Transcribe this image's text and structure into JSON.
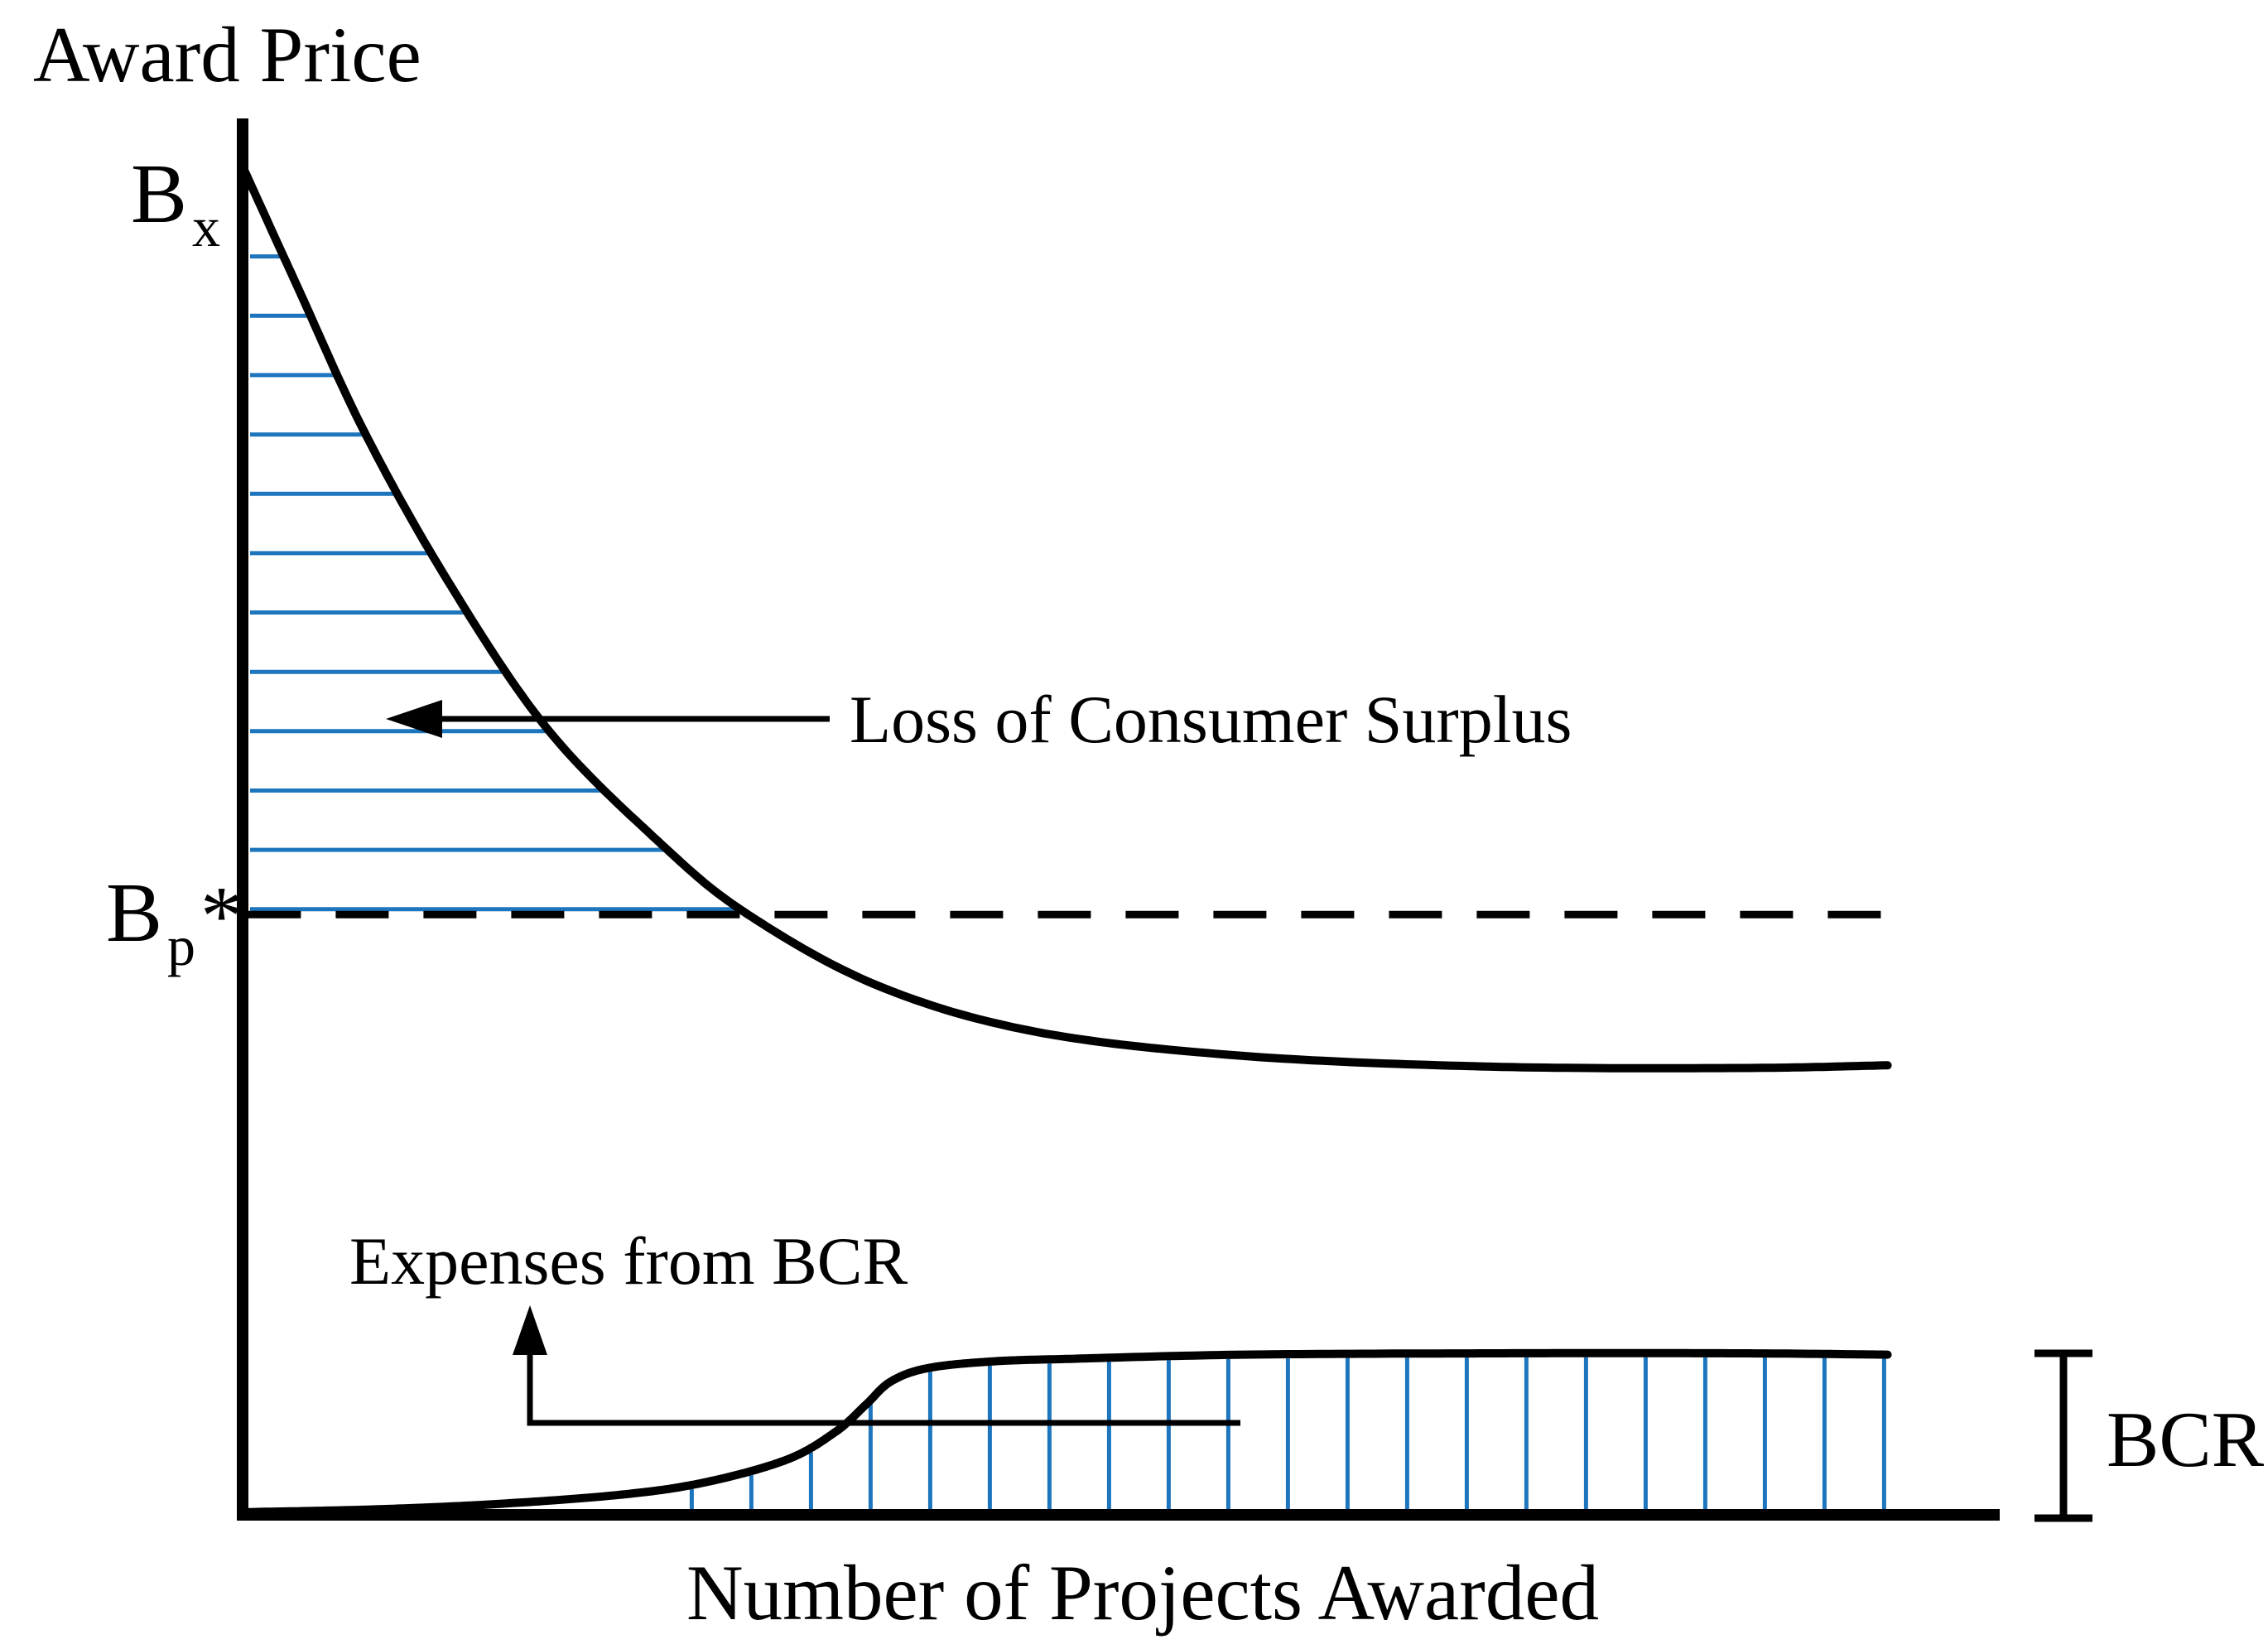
{
  "figure": {
    "background": "#ffffff",
    "ink_color": "#000000",
    "hatch_color": "#1d76bd"
  },
  "labels": {
    "y_axis_title": "Award Price",
    "x_axis_title": "Number of Projects Awarded",
    "y_top": {
      "base": "B",
      "sub": "x"
    },
    "y_mid": {
      "base": "B",
      "sub": "p",
      "suffix": "*"
    },
    "annotation_surplus": "Loss of Consumer Surplus",
    "annotation_expenses": "Expenses from BCR",
    "bracket_label": "BCR"
  },
  "chart_data": {
    "type": "line",
    "title": "",
    "xlabel": "Number of Projects Awarded",
    "ylabel": "Award Price",
    "axis_ticks": "none (conceptual economics diagram, no numeric scale)",
    "y_axis_annotations": [
      {
        "label": "Bx",
        "y_norm": 1.0,
        "meaning": "maximum award price at intercept"
      },
      {
        "label": "Bp*",
        "y_norm": 0.446,
        "meaning": "equilibrium award price marked by dashed line"
      }
    ],
    "series": [
      {
        "name": "award-price-curve",
        "style": "solid",
        "color": "#000000",
        "points_norm": [
          [
            0.001,
            0.999
          ],
          [
            0.032,
            0.91
          ],
          [
            0.069,
            0.805
          ],
          [
            0.116,
            0.695
          ],
          [
            0.173,
            0.584
          ],
          [
            0.238,
            0.498
          ],
          [
            0.287,
            0.446
          ],
          [
            0.361,
            0.393
          ],
          [
            0.45,
            0.359
          ],
          [
            0.568,
            0.341
          ],
          [
            0.709,
            0.333
          ],
          [
            0.85,
            0.332
          ],
          [
            0.934,
            0.334
          ]
        ]
      },
      {
        "name": "bcr-expenses-curve",
        "style": "solid",
        "color": "#000000",
        "points_norm": [
          [
            0.003,
            0.002
          ],
          [
            0.074,
            0.004
          ],
          [
            0.144,
            0.008
          ],
          [
            0.215,
            0.015
          ],
          [
            0.262,
            0.024
          ],
          [
            0.309,
            0.041
          ],
          [
            0.337,
            0.062
          ],
          [
            0.354,
            0.082
          ],
          [
            0.368,
            0.099
          ],
          [
            0.389,
            0.109
          ],
          [
            0.426,
            0.114
          ],
          [
            0.473,
            0.116
          ],
          [
            0.568,
            0.119
          ],
          [
            0.709,
            0.12
          ],
          [
            0.85,
            0.12
          ],
          [
            0.934,
            0.119
          ]
        ]
      }
    ],
    "reference_lines": [
      {
        "name": "bp-star-level",
        "label": "Bp*",
        "style": "dashed",
        "y_norm": 0.446,
        "x_from_norm": 0.003,
        "x_to_norm": 0.937
      }
    ],
    "shaded_regions": [
      {
        "name": "loss-of-consumer-surplus",
        "hatch": "horizontal",
        "between": "y-axis and award-price-curve, above Bp* dashed line",
        "y_from_norm": 0.935,
        "y_to_norm": 0.45,
        "line_count": 12
      },
      {
        "name": "expenses-from-bcr",
        "hatch": "vertical",
        "between": "x-axis and bcr-expenses-curve",
        "x_from_norm": 0.255,
        "x_to_norm": 0.932,
        "line_count": 21
      }
    ],
    "bracket": {
      "label": "BCR",
      "measures": "height of expenses plateau above x-axis",
      "y_from_norm": 0.0,
      "y_to_norm": 0.12
    },
    "annotations": [
      {
        "text": "Loss of Consumer Surplus",
        "arrow": "left",
        "points_to": "horizontally hatched area between y-axis and award-price curve"
      },
      {
        "text": "Expenses from BCR",
        "arrow": "up",
        "points_to": "vertically hatched area under bcr-expenses curve"
      }
    ],
    "legend": "none",
    "grid": false
  }
}
